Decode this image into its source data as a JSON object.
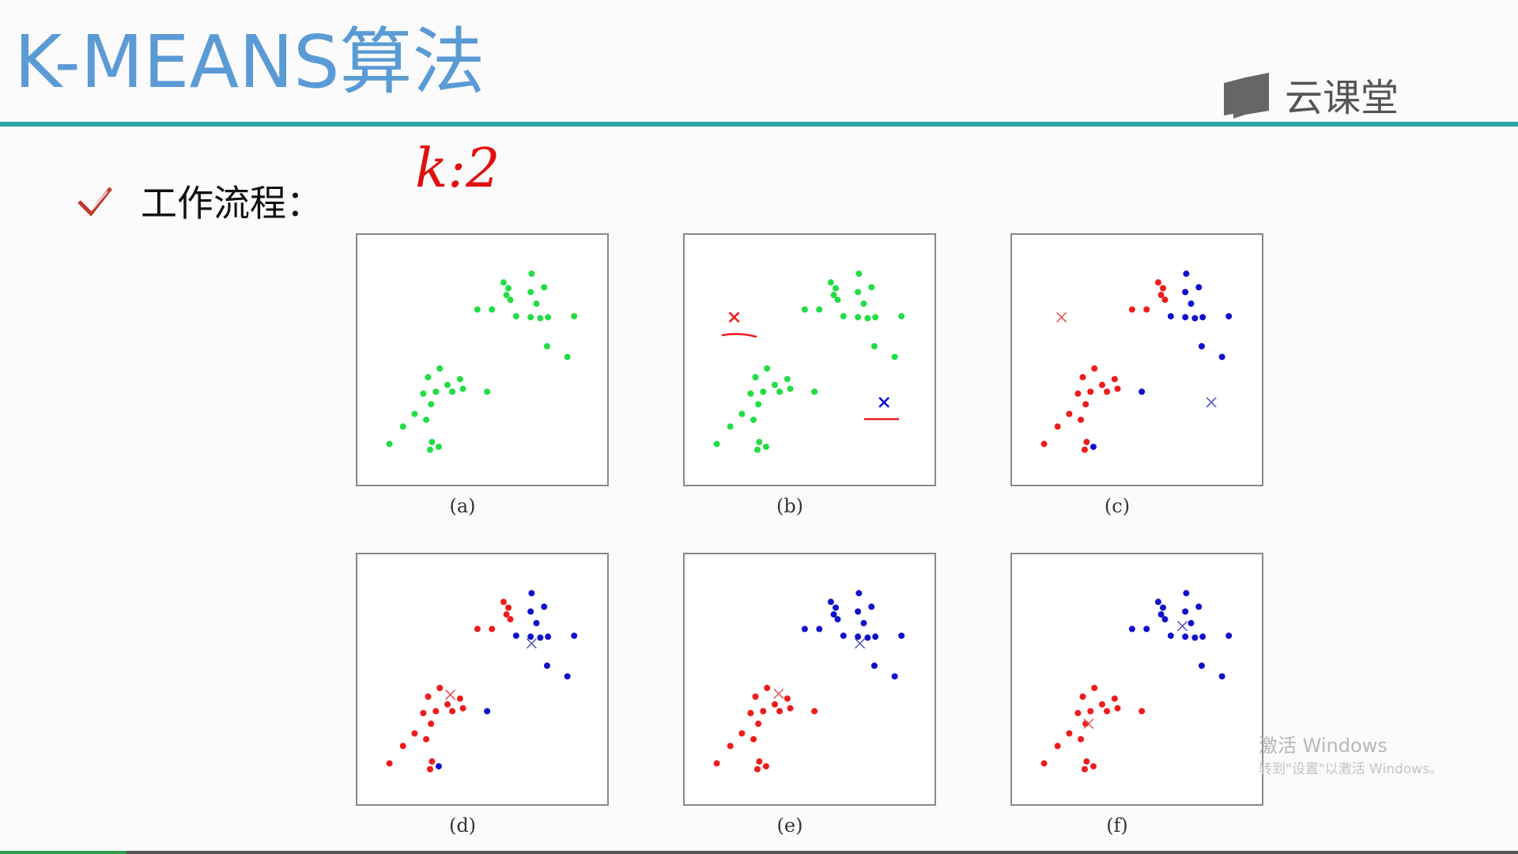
{
  "header": {
    "title": "K-MEANS算法",
    "logo": "云课堂"
  },
  "bullet": {
    "text": "工作流程："
  },
  "annotation": "k:2",
  "panels": [
    {
      "caption": "(a)"
    },
    {
      "caption": "(b)"
    },
    {
      "caption": "(c)"
    },
    {
      "caption": "(d)"
    },
    {
      "caption": "(e)"
    },
    {
      "caption": "(f)"
    }
  ],
  "watermark": {
    "line1": "激活 Windows",
    "line2": "转到\"设置\"以激活 Windows。"
  }
}
